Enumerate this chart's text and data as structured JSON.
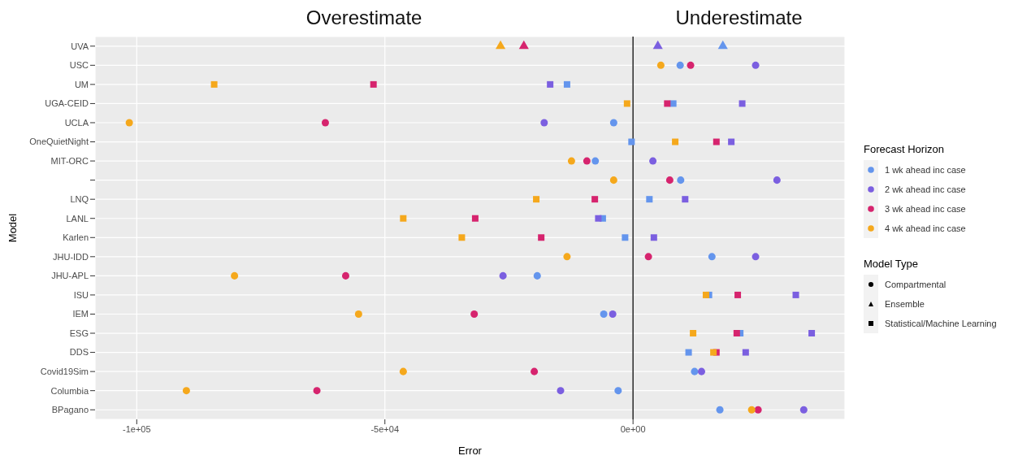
{
  "chart_data": {
    "type": "scatter",
    "orientation": "horizontal",
    "xlabel": "Error",
    "ylabel": "Model",
    "legend_title": "Forecast Horizon",
    "legend": "right",
    "grid": true,
    "categories": [
      "UVA",
      "USC",
      "UM",
      "UGA-CEID",
      "UCLA",
      "OneQuietNight",
      "MIT-ORC",
      null,
      "LNQ",
      "LANL",
      "Karlen",
      "JHU-IDD",
      "JHU-APL",
      "ISU",
      "IEM",
      "ESG",
      "DDS",
      "Covid19Sim",
      "Columbia",
      "BPagano"
    ],
    "xlim": [
      -108400,
      42700
    ],
    "xticks": [
      {
        "value": -100000,
        "label": "-1e+05"
      },
      {
        "value": -50000,
        "label": "-5e+04"
      },
      {
        "value": 0,
        "label": "0e+00"
      }
    ],
    "ref_lines": [
      {
        "axis": "x",
        "value": 0,
        "color": "#333333"
      }
    ],
    "annotations": [
      "Overestimate",
      "Underestimate",
      "Model Type",
      "Compartmental",
      "Ensemble",
      "Statistical/Machine Learning"
    ],
    "series": [
      {
        "name": "1 wk ahead inc case",
        "color": "#6495ed",
        "marker": "circle",
        "values": [
          null,
          9500,
          null,
          null,
          -3900,
          null,
          -7600,
          9600,
          null,
          null,
          null,
          15900,
          -19300,
          null,
          -5900,
          null,
          null,
          12400,
          -3000,
          17500
        ]
      },
      {
        "name": null,
        "color": "#6495ed",
        "marker": "triangle",
        "values": [
          18100,
          null,
          null,
          null,
          null,
          null,
          null,
          null,
          null,
          null,
          null,
          null,
          null,
          null,
          null,
          null,
          null,
          null,
          null,
          null
        ]
      },
      {
        "name": null,
        "color": "#6495ed",
        "marker": "square",
        "values": [
          null,
          null,
          -13300,
          8100,
          null,
          -300,
          null,
          null,
          3300,
          -6100,
          -1600,
          null,
          null,
          15300,
          null,
          21600,
          11200,
          null,
          null,
          null
        ]
      },
      {
        "name": "2 wk ahead inc case",
        "color": "#7b5fe0",
        "marker": "circle",
        "values": [
          null,
          24700,
          null,
          null,
          -17900,
          null,
          4000,
          29000,
          null,
          null,
          null,
          24700,
          -26200,
          null,
          -4100,
          null,
          null,
          13800,
          -14600,
          34400
        ]
      },
      {
        "name": null,
        "color": "#7b5fe0",
        "marker": "triangle",
        "values": [
          5000,
          null,
          null,
          null,
          null,
          null,
          null,
          null,
          null,
          null,
          null,
          null,
          null,
          null,
          null,
          null,
          null,
          null,
          null,
          null
        ]
      },
      {
        "name": null,
        "color": "#7b5fe0",
        "marker": "square",
        "values": [
          null,
          null,
          -16700,
          22000,
          null,
          19800,
          null,
          null,
          10500,
          -7000,
          4200,
          null,
          null,
          32800,
          null,
          36000,
          22700,
          null,
          null,
          null
        ]
      },
      {
        "name": "3 wk ahead inc case",
        "color": "#d6246e",
        "marker": "circle",
        "values": [
          null,
          11600,
          null,
          null,
          -62000,
          null,
          -9300,
          7400,
          null,
          null,
          null,
          3100,
          -57900,
          null,
          -32000,
          null,
          null,
          -19900,
          -63700,
          25200
        ]
      },
      {
        "name": null,
        "color": "#d6246e",
        "marker": "triangle",
        "values": [
          -22000,
          null,
          null,
          null,
          null,
          null,
          null,
          null,
          null,
          null,
          null,
          null,
          null,
          null,
          null,
          null,
          null,
          null,
          null,
          null
        ]
      },
      {
        "name": null,
        "color": "#d6246e",
        "marker": "square",
        "values": [
          null,
          null,
          -52300,
          6900,
          null,
          16800,
          null,
          null,
          -7700,
          -31800,
          -18500,
          null,
          null,
          21100,
          null,
          20900,
          16800,
          null,
          null,
          null
        ]
      },
      {
        "name": "4 wk ahead inc case",
        "color": "#f5a81c",
        "marker": "circle",
        "values": [
          null,
          5600,
          null,
          null,
          -101500,
          null,
          -12400,
          -3900,
          null,
          null,
          null,
          -13300,
          -80300,
          null,
          -55300,
          null,
          null,
          -46300,
          -90000,
          23900
        ]
      },
      {
        "name": null,
        "color": "#f5a81c",
        "marker": "triangle",
        "values": [
          -26700,
          null,
          null,
          null,
          null,
          null,
          null,
          null,
          null,
          null,
          null,
          null,
          null,
          null,
          null,
          null,
          null,
          null,
          null,
          null
        ]
      },
      {
        "name": null,
        "color": "#f5a81c",
        "marker": "square",
        "values": [
          null,
          null,
          -84400,
          -1200,
          null,
          8500,
          null,
          null,
          -19500,
          -46300,
          -34500,
          null,
          null,
          14700,
          null,
          12100,
          16200,
          null,
          null,
          null
        ]
      }
    ]
  }
}
